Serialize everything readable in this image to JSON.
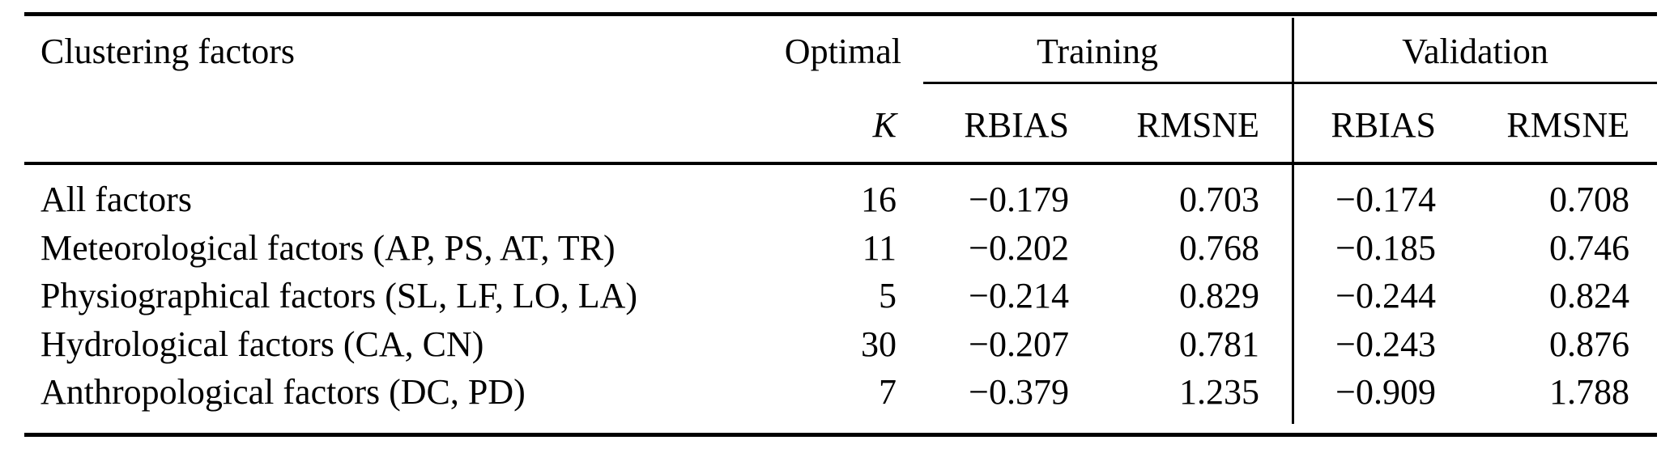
{
  "table": {
    "header": {
      "clustering_factors": "Clustering factors",
      "optimal_line1": "Optimal",
      "optimal_line2": "K",
      "training": "Training",
      "validation": "Validation",
      "sub_headers": [
        "RBIAS",
        "RMSNE",
        "RBIAS",
        "RMSNE"
      ]
    },
    "rows": [
      {
        "name": "All factors",
        "k": "16",
        "t_rbias": "−0.179",
        "t_rmsne": "0.703",
        "v_rbias": "−0.174",
        "v_rmsne": "0.708"
      },
      {
        "name": "Meteorological factors (AP, PS, AT, TR)",
        "k": "11",
        "t_rbias": "−0.202",
        "t_rmsne": "0.768",
        "v_rbias": "−0.185",
        "v_rmsne": "0.746"
      },
      {
        "name": "Physiographical factors (SL, LF, LO, LA)",
        "k": "5",
        "t_rbias": "−0.214",
        "t_rmsne": "0.829",
        "v_rbias": "−0.244",
        "v_rmsne": "0.824"
      },
      {
        "name": "Hydrological factors (CA, CN)",
        "k": "30",
        "t_rbias": "−0.207",
        "t_rmsne": "0.781",
        "v_rbias": "−0.243",
        "v_rmsne": "0.876"
      },
      {
        "name": "Anthropological factors (DC, PD)",
        "k": "7",
        "t_rbias": "−0.379",
        "t_rmsne": "1.235",
        "v_rbias": "−0.909",
        "v_rmsne": "1.788"
      }
    ],
    "colors": {
      "text": "#000000",
      "background": "#ffffff",
      "rule": "#000000"
    }
  }
}
